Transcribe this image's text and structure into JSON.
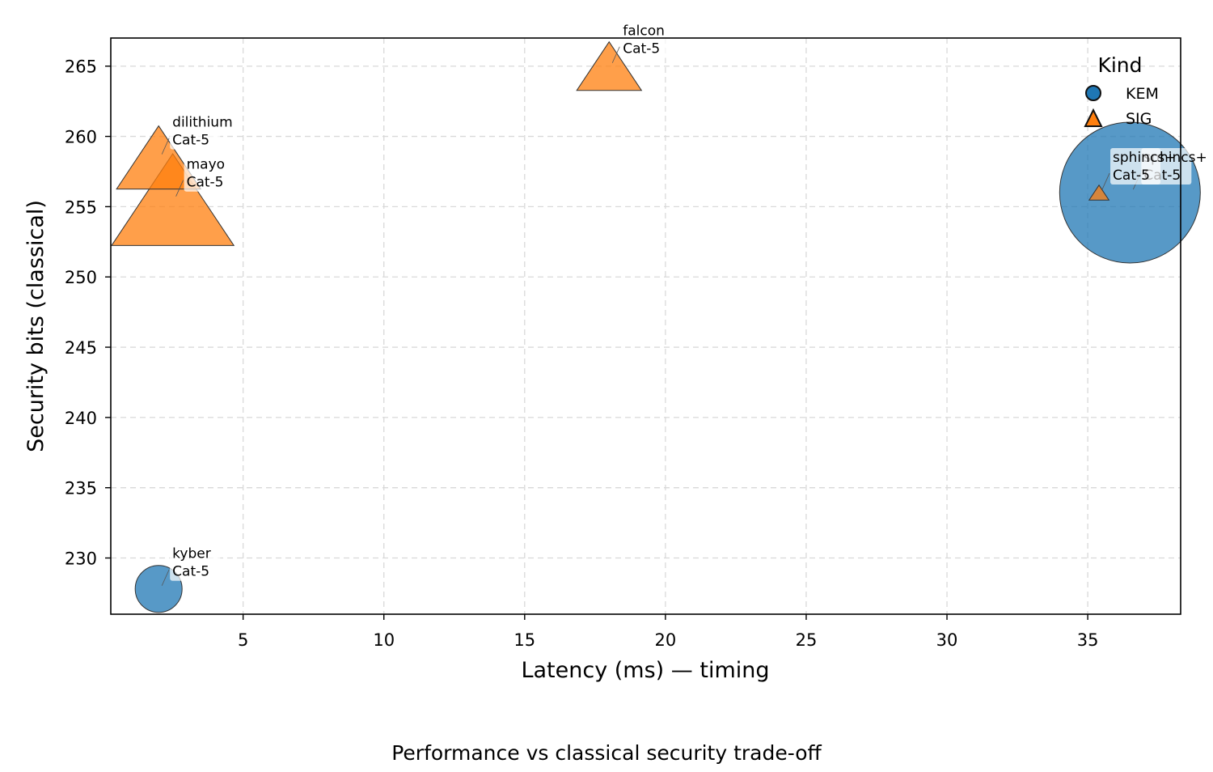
{
  "chart_data": {
    "type": "scatter",
    "title": "Performance vs classical security trade-off",
    "xlabel": "Latency (ms) — timing",
    "ylabel": "Security bits (classical)",
    "xlim": [
      0.3,
      38.3
    ],
    "ylim": [
      226.0,
      267.0
    ],
    "xticks": [
      5,
      10,
      15,
      20,
      25,
      30,
      35
    ],
    "yticks": [
      230,
      235,
      240,
      245,
      250,
      255,
      260,
      265
    ],
    "grid": true,
    "legend": {
      "title": "Kind",
      "position": "top-right",
      "entries": [
        {
          "label": "KEM",
          "marker": "circle",
          "color": "#1f77b4"
        },
        {
          "label": "SIG",
          "marker": "triangle",
          "color": "#ff7f0e"
        }
      ]
    },
    "series": [
      {
        "name": "KEM",
        "marker": "circle",
        "color": "#1f77b4",
        "points": [
          {
            "label": "kyber",
            "category": "Cat-5",
            "x": 2.0,
            "y": 227.8,
            "size": 1
          },
          {
            "label": "sphincs+",
            "category": "Cat-5",
            "x": 36.5,
            "y": 256.0,
            "size": 9
          }
        ]
      },
      {
        "name": "SIG",
        "marker": "triangle",
        "color": "#ff7f0e",
        "points": [
          {
            "label": "falcon",
            "category": "Cat-5",
            "x": 18.0,
            "y": 265.0,
            "size": 1.6
          },
          {
            "label": "dilithium",
            "category": "Cat-5",
            "x": 2.0,
            "y": 258.5,
            "size": 2.7
          },
          {
            "label": "mayo",
            "category": "Cat-5",
            "x": 2.5,
            "y": 255.5,
            "size": 5.7
          },
          {
            "label": "sphincs+",
            "category": "Cat-5",
            "x": 35.4,
            "y": 256.0,
            "size": 0.15
          }
        ]
      }
    ]
  }
}
